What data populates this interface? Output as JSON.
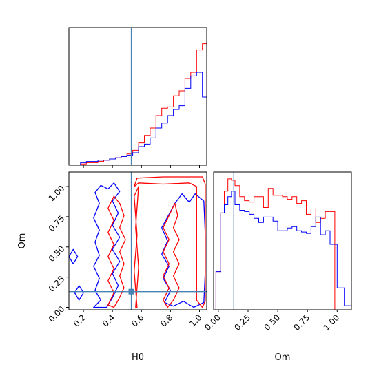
{
  "colors": {
    "series_a": "#ff0000",
    "series_b": "#0000ff",
    "truth": "#4682b4"
  },
  "chart_data": {
    "type": "corner",
    "parameters": [
      "H0",
      "Om"
    ],
    "truth": {
      "H0": 0.53,
      "Om": 0.13
    },
    "panels": [
      {
        "id": "hist_H0",
        "type": "histogram",
        "x_param": "H0",
        "xlim": [
          0.1,
          1.05
        ],
        "ymax": 1.0,
        "ticks_labeled": false,
        "x_ticks": [
          0.2,
          0.4,
          0.6,
          0.8,
          1.0
        ],
        "bin_edges": [
          0.1,
          0.14,
          0.18,
          0.22,
          0.26,
          0.3,
          0.34,
          0.38,
          0.42,
          0.46,
          0.5,
          0.54,
          0.58,
          0.62,
          0.66,
          0.7,
          0.74,
          0.78,
          0.82,
          0.86,
          0.9,
          0.94,
          0.98,
          1.02,
          1.05
        ],
        "series": [
          {
            "color_key": "series_a",
            "values": [
              0,
              0,
              0.01,
              0.02,
              0.02,
              0.03,
              0.04,
              0.05,
              0.06,
              0.07,
              0.09,
              0.12,
              0.18,
              0.24,
              0.3,
              0.4,
              0.46,
              0.47,
              0.56,
              0.6,
              0.7,
              0.75,
              0.93,
              0.98
            ]
          },
          {
            "color_key": "series_b",
            "values": [
              0,
              0,
              0.02,
              0.03,
              0.03,
              0.04,
              0.04,
              0.05,
              0.06,
              0.07,
              0.08,
              0.1,
              0.15,
              0.17,
              0.22,
              0.3,
              0.34,
              0.4,
              0.45,
              0.48,
              0.62,
              0.72,
              0.75,
              0.55
            ]
          }
        ]
      },
      {
        "id": "contour_H0_Om",
        "type": "contour",
        "x_param": "H0",
        "y_param": "Om",
        "xlabel": "H0",
        "ylabel": "Om",
        "xlim": [
          0.1,
          1.05
        ],
        "ylim": [
          -0.02,
          1.12
        ],
        "x_ticks": [
          0.2,
          0.4,
          0.6,
          0.8,
          1.0
        ],
        "x_tick_labels": [
          "0.2",
          "0.4",
          "0.6",
          "0.8",
          "1.0"
        ],
        "y_ticks": [
          0.0,
          0.25,
          0.5,
          0.75,
          1.0
        ],
        "y_tick_labels": [
          "0.00",
          "0.25",
          "0.50",
          "0.75",
          "1.00"
        ],
        "series": [
          {
            "color_key": "series_b",
            "contours": [
              [
                [
                  0.27,
                  0.0
                ],
                [
                  0.32,
                  0.06
                ],
                [
                  0.28,
                  0.14
                ],
                [
                  0.31,
                  0.24
                ],
                [
                  0.27,
                  0.34
                ],
                [
                  0.31,
                  0.43
                ],
                [
                  0.28,
                  0.54
                ],
                [
                  0.31,
                  0.64
                ],
                [
                  0.27,
                  0.74
                ],
                [
                  0.31,
                  0.86
                ],
                [
                  0.28,
                  0.95
                ],
                [
                  0.32,
                  1.01
                ],
                [
                  0.37,
                  0.98
                ],
                [
                  0.41,
                  1.03
                ],
                [
                  0.45,
                  0.96
                ],
                [
                  0.4,
                  0.88
                ],
                [
                  0.44,
                  0.78
                ],
                [
                  0.4,
                  0.68
                ],
                [
                  0.45,
                  0.58
                ],
                [
                  0.4,
                  0.48
                ],
                [
                  0.45,
                  0.38
                ],
                [
                  0.4,
                  0.28
                ],
                [
                  0.44,
                  0.18
                ],
                [
                  0.4,
                  0.08
                ],
                [
                  0.36,
                  0.0
                ]
              ],
              [
                [
                  0.76,
                  0.04
                ],
                [
                  0.8,
                  0.14
                ],
                [
                  0.75,
                  0.24
                ],
                [
                  0.79,
                  0.34
                ],
                [
                  0.74,
                  0.44
                ],
                [
                  0.78,
                  0.55
                ],
                [
                  0.74,
                  0.66
                ],
                [
                  0.79,
                  0.77
                ],
                [
                  0.83,
                  0.86
                ],
                [
                  0.88,
                  0.94
                ],
                [
                  0.93,
                  0.87
                ],
                [
                  0.97,
                  0.94
                ],
                [
                  1.03,
                  0.88
                ],
                [
                  1.04,
                  0.6
                ],
                [
                  1.04,
                  0.3
                ],
                [
                  1.03,
                  0.04
                ],
                [
                  0.96,
                  0.0
                ],
                [
                  0.89,
                  0.05
                ],
                [
                  0.82,
                  0.01
                ]
              ],
              [
                [
                  0.1,
                  0.42
                ],
                [
                  0.13,
                  0.36
                ],
                [
                  0.16,
                  0.42
                ],
                [
                  0.13,
                  0.48
                ],
                [
                  0.1,
                  0.42
                ]
              ],
              [
                [
                  0.14,
                  0.12
                ],
                [
                  0.17,
                  0.06
                ],
                [
                  0.2,
                  0.12
                ],
                [
                  0.17,
                  0.18
                ],
                [
                  0.14,
                  0.12
                ]
              ]
            ]
          },
          {
            "color_key": "series_a",
            "contours": [
              [
                [
                  0.37,
                  0.02
                ],
                [
                  0.41,
                  0.12
                ],
                [
                  0.37,
                  0.22
                ],
                [
                  0.41,
                  0.32
                ],
                [
                  0.37,
                  0.42
                ],
                [
                  0.41,
                  0.52
                ],
                [
                  0.37,
                  0.62
                ],
                [
                  0.41,
                  0.72
                ],
                [
                  0.37,
                  0.82
                ],
                [
                  0.41,
                  0.92
                ],
                [
                  0.45,
                  0.86
                ],
                [
                  0.48,
                  0.76
                ],
                [
                  0.45,
                  0.66
                ],
                [
                  0.49,
                  0.56
                ],
                [
                  0.45,
                  0.46
                ],
                [
                  0.48,
                  0.36
                ],
                [
                  0.45,
                  0.26
                ],
                [
                  0.48,
                  0.16
                ],
                [
                  0.44,
                  0.06
                ],
                [
                  0.41,
                  0.0
                ]
              ],
              [
                [
                  0.75,
                  0.06
                ],
                [
                  0.79,
                  0.16
                ],
                [
                  0.75,
                  0.26
                ],
                [
                  0.79,
                  0.36
                ],
                [
                  0.75,
                  0.46
                ],
                [
                  0.79,
                  0.56
                ],
                [
                  0.75,
                  0.66
                ],
                [
                  0.79,
                  0.76
                ],
                [
                  0.83,
                  0.86
                ],
                [
                  0.85,
                  0.76
                ],
                [
                  0.82,
                  0.66
                ],
                [
                  0.86,
                  0.56
                ],
                [
                  0.82,
                  0.46
                ],
                [
                  0.86,
                  0.36
                ],
                [
                  0.82,
                  0.26
                ],
                [
                  0.86,
                  0.16
                ],
                [
                  0.82,
                  0.06
                ],
                [
                  0.78,
                  0.0
                ]
              ],
              [
                [
                  0.55,
                  1.0
                ],
                [
                  0.57,
                  1.07
                ],
                [
                  0.75,
                  1.08
                ],
                [
                  1.02,
                  1.08
                ],
                [
                  1.04,
                  1.02
                ],
                [
                  1.04,
                  0.05
                ],
                [
                  1.02,
                  0.0
                ],
                [
                  0.98,
                  0.06
                ],
                [
                  0.98,
                  1.0
                ],
                [
                  0.93,
                  1.03
                ],
                [
                  0.75,
                  1.02
                ],
                [
                  0.58,
                  1.03
                ],
                [
                  0.55,
                  1.0
                ]
              ],
              [
                [
                  0.57,
                  0.0
                ],
                [
                  0.55,
                  0.3
                ],
                [
                  0.57,
                  0.6
                ],
                [
                  0.55,
                  0.92
                ],
                [
                  0.58,
                  1.0
                ],
                [
                  0.56,
                  0.66
                ],
                [
                  0.58,
                  0.33
                ],
                [
                  0.56,
                  0.0
                ]
              ]
            ]
          }
        ]
      },
      {
        "id": "hist_Om",
        "type": "histogram",
        "x_param": "Om",
        "xlabel": "Om",
        "xlim": [
          -0.04,
          1.12
        ],
        "ymax": 1.0,
        "x_ticks": [
          0.0,
          0.25,
          0.5,
          0.75,
          1.0
        ],
        "x_tick_labels": [
          "0.00",
          "0.25",
          "0.50",
          "0.75",
          "1.00"
        ],
        "bin_edges": [
          -0.02,
          0.02,
          0.05,
          0.08,
          0.11,
          0.14,
          0.18,
          0.22,
          0.26,
          0.3,
          0.34,
          0.38,
          0.42,
          0.46,
          0.5,
          0.54,
          0.58,
          0.62,
          0.66,
          0.7,
          0.74,
          0.78,
          0.82,
          0.86,
          0.9,
          0.94,
          0.98,
          1.0,
          1.06,
          1.12
        ],
        "series": [
          {
            "color_key": "series_a",
            "values": [
              0.28,
              0.71,
              0.87,
              0.96,
              0.95,
              0.91,
              0.83,
              0.8,
              0.79,
              0.83,
              0.83,
              0.75,
              0.89,
              0.84,
              0.84,
              0.83,
              0.81,
              0.83,
              0.78,
              0.8,
              0.7,
              0.74,
              0.64,
              0.67,
              0.72,
              0.72,
              0.0,
              0.0,
              0.0
            ]
          },
          {
            "color_key": "series_b",
            "values": [
              0.28,
              0.71,
              0.77,
              0.83,
              0.87,
              0.77,
              0.73,
              0.72,
              0.7,
              0.67,
              0.64,
              0.68,
              0.68,
              0.65,
              0.58,
              0.58,
              0.6,
              0.61,
              0.58,
              0.57,
              0.56,
              0.61,
              0.68,
              0.55,
              0.58,
              0.48,
              0.48,
              0.16,
              0.03
            ]
          }
        ]
      }
    ]
  }
}
